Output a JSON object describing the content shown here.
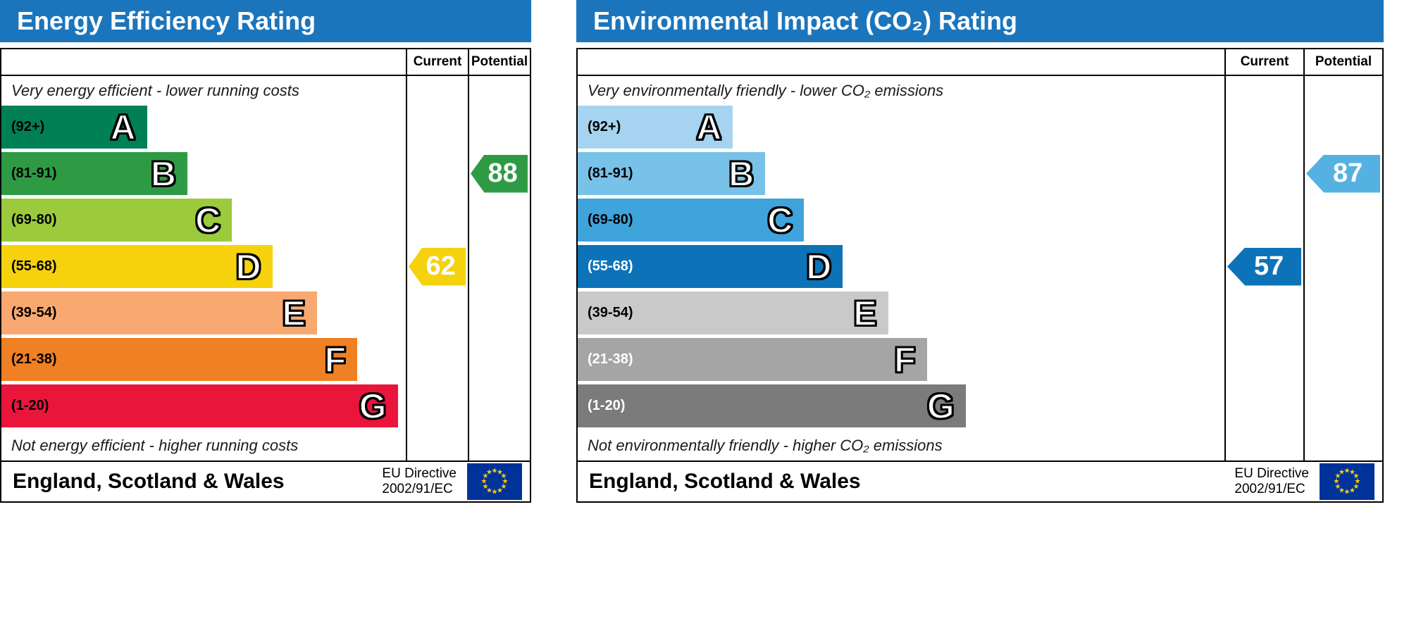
{
  "page": {
    "background": "#ffffff"
  },
  "chart_data": [
    {
      "type": "bar",
      "title": "Energy Efficiency Rating",
      "header_color": "#1b75bc",
      "columns": {
        "current": "Current",
        "potential": "Potential"
      },
      "top_note": "Very energy efficient - lower running costs",
      "bottom_note": "Not energy efficient - higher running costs",
      "scale_range": [
        1,
        100
      ],
      "bands": [
        {
          "letter": "A",
          "range": "(92+)",
          "min": 92,
          "max": 100,
          "color": "#008054",
          "width_pct": 36,
          "range_color": "#000000"
        },
        {
          "letter": "B",
          "range": "(81-91)",
          "min": 81,
          "max": 91,
          "color": "#2e9b44",
          "width_pct": 46,
          "range_color": "#000000"
        },
        {
          "letter": "C",
          "range": "(69-80)",
          "min": 69,
          "max": 80,
          "color": "#9bca3c",
          "width_pct": 57,
          "range_color": "#000000"
        },
        {
          "letter": "D",
          "range": "(55-68)",
          "min": 55,
          "max": 68,
          "color": "#f6d20c",
          "width_pct": 67,
          "range_color": "#000000"
        },
        {
          "letter": "E",
          "range": "(39-54)",
          "min": 39,
          "max": 54,
          "color": "#f8a870",
          "width_pct": 78,
          "range_color": "#000000"
        },
        {
          "letter": "F",
          "range": "(21-38)",
          "min": 21,
          "max": 38,
          "color": "#ef8023",
          "width_pct": 88,
          "range_color": "#000000"
        },
        {
          "letter": "G",
          "range": "(1-20)",
          "min": 1,
          "max": 20,
          "color": "#e9153b",
          "width_pct": 98,
          "range_color": "#000000"
        }
      ],
      "current": {
        "value": 62,
        "band": "D",
        "color": "#f6d20c"
      },
      "potential": {
        "value": 88,
        "band": "B",
        "color": "#2e9b44"
      },
      "footer": {
        "region": "England, Scotland & Wales",
        "directive_line1": "EU Directive",
        "directive_line2": "2002/91/EC"
      }
    },
    {
      "type": "bar",
      "title": "Environmental Impact (CO₂) Rating",
      "header_color": "#1b75bc",
      "columns": {
        "current": "Current",
        "potential": "Potential"
      },
      "top_note": "Very environmentally friendly - lower CO₂ emissions",
      "bottom_note": "Not environmentally friendly - higher CO₂ emissions",
      "scale_range": [
        1,
        100
      ],
      "bands": [
        {
          "letter": "A",
          "range": "(92+)",
          "min": 92,
          "max": 100,
          "color": "#a6d4f0",
          "width_pct": 24,
          "range_color": "#000000"
        },
        {
          "letter": "B",
          "range": "(81-91)",
          "min": 81,
          "max": 91,
          "color": "#78c1e8",
          "width_pct": 29,
          "range_color": "#000000"
        },
        {
          "letter": "C",
          "range": "(69-80)",
          "min": 69,
          "max": 80,
          "color": "#3fa3dc",
          "width_pct": 35,
          "range_color": "#000000"
        },
        {
          "letter": "D",
          "range": "(55-68)",
          "min": 55,
          "max": 68,
          "color": "#0d73b8",
          "width_pct": 41,
          "range_color": "#ffffff"
        },
        {
          "letter": "E",
          "range": "(39-54)",
          "min": 39,
          "max": 54,
          "color": "#c9c9c9",
          "width_pct": 48,
          "range_color": "#000000"
        },
        {
          "letter": "F",
          "range": "(21-38)",
          "min": 21,
          "max": 38,
          "color": "#a5a5a5",
          "width_pct": 54,
          "range_color": "#ffffff"
        },
        {
          "letter": "G",
          "range": "(1-20)",
          "min": 1,
          "max": 20,
          "color": "#7b7b7b",
          "width_pct": 60,
          "range_color": "#ffffff"
        }
      ],
      "current": {
        "value": 57,
        "band": "D",
        "color": "#0d73b8"
      },
      "potential": {
        "value": 87,
        "band": "B",
        "color": "#55b1e2"
      },
      "footer": {
        "region": "England, Scotland & Wales",
        "directive_line1": "EU Directive",
        "directive_line2": "2002/91/EC"
      }
    }
  ],
  "flag": {
    "background": "#003399",
    "star_color": "#ffcc00",
    "star": "★"
  }
}
